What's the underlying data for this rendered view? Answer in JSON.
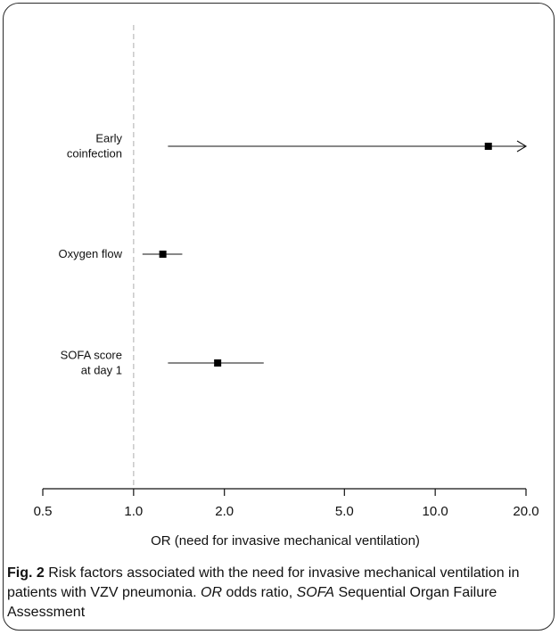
{
  "chart_data": {
    "type": "forest",
    "xlabel": "OR (need for invasive mechanical ventilation)",
    "x_scale": "log",
    "xlim": [
      0.5,
      20.0
    ],
    "ticks": [
      0.5,
      1.0,
      2.0,
      5.0,
      10.0,
      20.0
    ],
    "tick_labels": [
      "0.5",
      "1.0",
      "2.0",
      "5.0",
      "10.0",
      "20.0"
    ],
    "reference_line": 1.0,
    "rows": [
      {
        "label_lines": [
          "Early",
          "coinfection"
        ],
        "or": 15.0,
        "ci_low": 1.3,
        "ci_high": 20.0,
        "ci_high_truncated": true
      },
      {
        "label_lines": [
          "Oxygen flow"
        ],
        "or": 1.25,
        "ci_low": 1.07,
        "ci_high": 1.45,
        "ci_high_truncated": false
      },
      {
        "label_lines": [
          "SOFA score",
          "at day 1"
        ],
        "or": 1.9,
        "ci_low": 1.3,
        "ci_high": 2.7,
        "ci_high_truncated": false
      }
    ]
  },
  "caption": {
    "fig_label": "Fig. 2",
    "text_1": " Risk factors associated with the need for invasive mechanical ventilation in patients with VZV pneumonia. ",
    "abbr_1": "OR",
    "text_2": " odds ratio, ",
    "abbr_2": "SOFA",
    "text_3": " Sequential Organ Failure Assessment"
  }
}
